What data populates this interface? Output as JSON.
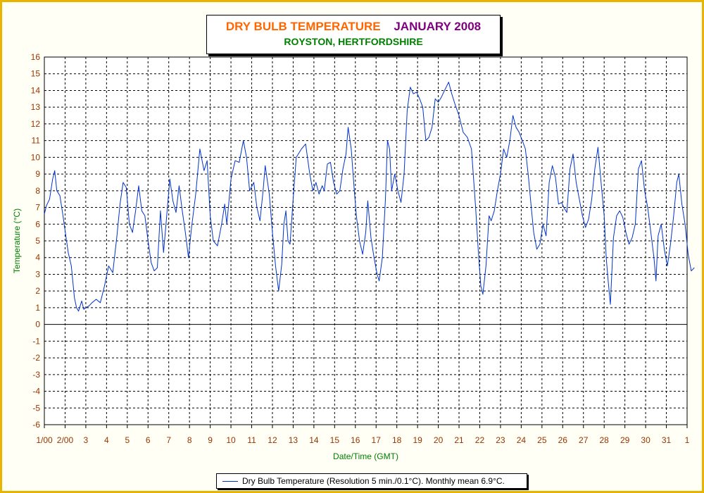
{
  "title": {
    "main": "DRY BULB TEMPERATURE",
    "month": "JANUARY 2008",
    "subtitle": "ROYSTON, HERTFORDSHIRE"
  },
  "legend": {
    "label": "Dry Bulb Temperature (Resolution 5 min./0.1°C). Monthly mean 6.9°C."
  },
  "colors": {
    "frame_background": "#fffff5",
    "frame_border": "#e8b400",
    "tick_label": "#993300",
    "axis_title": "#008000",
    "series_line": "#0033cc"
  },
  "chart_data": {
    "type": "line",
    "title": "DRY BULB TEMPERATURE JANUARY 2008",
    "subtitle": "ROYSTON, HERTFORDSHIRE",
    "xlabel": "Date/Time (GMT)",
    "ylabel": "Temperature (°C)",
    "ylim": [
      -6,
      16
    ],
    "yticks": [
      -6,
      -5,
      -4,
      -3,
      -2,
      -1,
      0,
      1,
      2,
      3,
      4,
      5,
      6,
      7,
      8,
      9,
      10,
      11,
      12,
      13,
      14,
      15,
      16
    ],
    "xlim": [
      1,
      32
    ],
    "xticks": [
      {
        "day": 1,
        "label": "1/00"
      },
      {
        "day": 2,
        "label": "2/00"
      },
      {
        "day": 3,
        "label": "3"
      },
      {
        "day": 4,
        "label": "4"
      },
      {
        "day": 5,
        "label": "5"
      },
      {
        "day": 6,
        "label": "6"
      },
      {
        "day": 7,
        "label": "7"
      },
      {
        "day": 8,
        "label": "8"
      },
      {
        "day": 9,
        "label": "9"
      },
      {
        "day": 10,
        "label": "10"
      },
      {
        "day": 11,
        "label": "11"
      },
      {
        "day": 12,
        "label": "12"
      },
      {
        "day": 13,
        "label": "13"
      },
      {
        "day": 14,
        "label": "14"
      },
      {
        "day": 15,
        "label": "15"
      },
      {
        "day": 16,
        "label": "16"
      },
      {
        "day": 17,
        "label": "17"
      },
      {
        "day": 18,
        "label": "18"
      },
      {
        "day": 19,
        "label": "19"
      },
      {
        "day": 20,
        "label": "20"
      },
      {
        "day": 21,
        "label": "21"
      },
      {
        "day": 22,
        "label": "22"
      },
      {
        "day": 23,
        "label": "23"
      },
      {
        "day": 24,
        "label": "24"
      },
      {
        "day": 25,
        "label": "25"
      },
      {
        "day": 26,
        "label": "26"
      },
      {
        "day": 27,
        "label": "27"
      },
      {
        "day": 28,
        "label": "28"
      },
      {
        "day": 29,
        "label": "29"
      },
      {
        "day": 30,
        "label": "30"
      },
      {
        "day": 31,
        "label": "31"
      },
      {
        "day": 32,
        "label": "1"
      }
    ],
    "grid": true,
    "legend_position": "bottom-center",
    "series": [
      {
        "name": "Dry Bulb Temperature (Resolution 5 min./0.1°C). Monthly mean 6.9°C.",
        "x_unit": "day of month (fractional)",
        "points": [
          [
            1.0,
            6.6
          ],
          [
            1.1,
            7.1
          ],
          [
            1.25,
            7.5
          ],
          [
            1.4,
            8.7
          ],
          [
            1.5,
            9.2
          ],
          [
            1.6,
            8.0
          ],
          [
            1.75,
            7.7
          ],
          [
            1.9,
            6.5
          ],
          [
            2.0,
            5.6
          ],
          [
            2.15,
            4.3
          ],
          [
            2.3,
            3.5
          ],
          [
            2.45,
            1.6
          ],
          [
            2.55,
            1.0
          ],
          [
            2.65,
            0.8
          ],
          [
            2.8,
            1.4
          ],
          [
            2.9,
            0.9
          ],
          [
            3.0,
            1.0
          ],
          [
            3.15,
            1.1
          ],
          [
            3.3,
            1.3
          ],
          [
            3.5,
            1.5
          ],
          [
            3.7,
            1.3
          ],
          [
            3.9,
            2.3
          ],
          [
            4.1,
            3.5
          ],
          [
            4.3,
            3.1
          ],
          [
            4.5,
            5.3
          ],
          [
            4.65,
            7.2
          ],
          [
            4.8,
            8.5
          ],
          [
            4.95,
            8.2
          ],
          [
            5.1,
            6.0
          ],
          [
            5.25,
            5.5
          ],
          [
            5.4,
            6.8
          ],
          [
            5.55,
            8.3
          ],
          [
            5.7,
            6.8
          ],
          [
            5.85,
            6.5
          ],
          [
            6.0,
            5.0
          ],
          [
            6.15,
            3.7
          ],
          [
            6.3,
            3.2
          ],
          [
            6.45,
            3.4
          ],
          [
            6.6,
            6.8
          ],
          [
            6.75,
            4.3
          ],
          [
            6.9,
            6.5
          ],
          [
            7.05,
            8.7
          ],
          [
            7.2,
            7.4
          ],
          [
            7.35,
            6.7
          ],
          [
            7.5,
            8.3
          ],
          [
            7.65,
            6.8
          ],
          [
            7.8,
            5.5
          ],
          [
            7.95,
            4.0
          ],
          [
            8.1,
            5.8
          ],
          [
            8.3,
            7.8
          ],
          [
            8.5,
            10.5
          ],
          [
            8.7,
            9.2
          ],
          [
            8.85,
            9.8
          ],
          [
            9.0,
            6.5
          ],
          [
            9.15,
            5.0
          ],
          [
            9.35,
            4.7
          ],
          [
            9.55,
            6.0
          ],
          [
            9.7,
            7.2
          ],
          [
            9.8,
            6.0
          ],
          [
            10.0,
            8.7
          ],
          [
            10.2,
            9.8
          ],
          [
            10.4,
            9.7
          ],
          [
            10.6,
            11.0
          ],
          [
            10.75,
            10.0
          ],
          [
            10.9,
            8.0
          ],
          [
            11.1,
            8.5
          ],
          [
            11.25,
            7.0
          ],
          [
            11.4,
            6.2
          ],
          [
            11.55,
            8.0
          ],
          [
            11.65,
            9.5
          ],
          [
            11.85,
            7.8
          ],
          [
            12.0,
            5.5
          ],
          [
            12.15,
            3.5
          ],
          [
            12.3,
            2.0
          ],
          [
            12.45,
            3.6
          ],
          [
            12.55,
            6.0
          ],
          [
            12.65,
            6.8
          ],
          [
            12.75,
            5.0
          ],
          [
            12.85,
            4.8
          ],
          [
            13.0,
            7.5
          ],
          [
            13.15,
            10.0
          ],
          [
            13.4,
            10.5
          ],
          [
            13.6,
            10.8
          ],
          [
            13.8,
            9.0
          ],
          [
            13.95,
            8.0
          ],
          [
            14.1,
            8.5
          ],
          [
            14.25,
            7.8
          ],
          [
            14.4,
            8.3
          ],
          [
            14.5,
            8.0
          ],
          [
            14.65,
            9.6
          ],
          [
            14.8,
            9.7
          ],
          [
            14.95,
            8.5
          ],
          [
            15.1,
            7.8
          ],
          [
            15.25,
            8.0
          ],
          [
            15.4,
            9.3
          ],
          [
            15.55,
            10.2
          ],
          [
            15.65,
            11.8
          ],
          [
            15.8,
            10.5
          ],
          [
            15.95,
            8.0
          ],
          [
            16.05,
            6.5
          ],
          [
            16.2,
            5.0
          ],
          [
            16.35,
            4.2
          ],
          [
            16.5,
            5.5
          ],
          [
            16.6,
            7.4
          ],
          [
            16.75,
            5.2
          ],
          [
            16.9,
            4.0
          ],
          [
            17.05,
            3.0
          ],
          [
            17.15,
            2.6
          ],
          [
            17.3,
            4.0
          ],
          [
            17.45,
            7.5
          ],
          [
            17.55,
            11.0
          ],
          [
            17.65,
            10.5
          ],
          [
            17.75,
            8.0
          ],
          [
            17.9,
            9.0
          ],
          [
            18.05,
            8.0
          ],
          [
            18.2,
            7.3
          ],
          [
            18.35,
            9.0
          ],
          [
            18.5,
            12.8
          ],
          [
            18.65,
            14.2
          ],
          [
            18.8,
            13.8
          ],
          [
            18.95,
            13.9
          ],
          [
            19.1,
            13.5
          ],
          [
            19.25,
            13.0
          ],
          [
            19.4,
            11.0
          ],
          [
            19.55,
            11.2
          ],
          [
            19.7,
            11.8
          ],
          [
            19.85,
            13.5
          ],
          [
            20.0,
            13.3
          ],
          [
            20.15,
            13.6
          ],
          [
            20.3,
            14.0
          ],
          [
            20.5,
            14.5
          ],
          [
            20.65,
            13.8
          ],
          [
            20.8,
            13.2
          ],
          [
            21.0,
            12.5
          ],
          [
            21.2,
            11.5
          ],
          [
            21.4,
            11.2
          ],
          [
            21.6,
            10.5
          ],
          [
            21.8,
            7.0
          ],
          [
            21.95,
            4.0
          ],
          [
            22.05,
            2.3
          ],
          [
            22.15,
            1.8
          ],
          [
            22.3,
            3.5
          ],
          [
            22.45,
            6.5
          ],
          [
            22.55,
            6.2
          ],
          [
            22.7,
            6.8
          ],
          [
            22.85,
            8.0
          ],
          [
            23.0,
            9.0
          ],
          [
            23.15,
            10.5
          ],
          [
            23.3,
            10.0
          ],
          [
            23.45,
            11.0
          ],
          [
            23.6,
            12.5
          ],
          [
            23.75,
            11.8
          ],
          [
            23.9,
            11.5
          ],
          [
            24.05,
            11.0
          ],
          [
            24.2,
            10.5
          ],
          [
            24.35,
            8.8
          ],
          [
            24.5,
            6.8
          ],
          [
            24.6,
            5.5
          ],
          [
            24.75,
            4.5
          ],
          [
            24.9,
            4.8
          ],
          [
            25.05,
            6.0
          ],
          [
            25.2,
            5.3
          ],
          [
            25.35,
            8.5
          ],
          [
            25.5,
            9.5
          ],
          [
            25.65,
            8.8
          ],
          [
            25.8,
            7.2
          ],
          [
            25.95,
            7.3
          ],
          [
            26.05,
            7.0
          ],
          [
            26.2,
            6.7
          ],
          [
            26.35,
            9.3
          ],
          [
            26.5,
            10.2
          ],
          [
            26.65,
            8.5
          ],
          [
            26.8,
            7.5
          ],
          [
            26.95,
            6.5
          ],
          [
            27.1,
            5.8
          ],
          [
            27.25,
            6.3
          ],
          [
            27.4,
            7.5
          ],
          [
            27.55,
            9.3
          ],
          [
            27.7,
            10.6
          ],
          [
            27.85,
            8.5
          ],
          [
            28.0,
            6.5
          ],
          [
            28.1,
            4.0
          ],
          [
            28.2,
            2.5
          ],
          [
            28.3,
            1.2
          ],
          [
            28.45,
            5.2
          ],
          [
            28.6,
            6.5
          ],
          [
            28.75,
            6.8
          ],
          [
            28.9,
            6.4
          ],
          [
            29.05,
            5.5
          ],
          [
            29.2,
            4.8
          ],
          [
            29.35,
            5.2
          ],
          [
            29.5,
            6.0
          ],
          [
            29.65,
            9.3
          ],
          [
            29.8,
            9.8
          ],
          [
            29.95,
            8.0
          ],
          [
            30.1,
            7.0
          ],
          [
            30.25,
            5.5
          ],
          [
            30.4,
            4.0
          ],
          [
            30.5,
            2.6
          ],
          [
            30.6,
            5.3
          ],
          [
            30.75,
            6.0
          ],
          [
            30.9,
            4.5
          ],
          [
            31.05,
            3.5
          ],
          [
            31.2,
            4.8
          ],
          [
            31.35,
            6.5
          ],
          [
            31.5,
            8.5
          ],
          [
            31.6,
            9.0
          ],
          [
            31.75,
            7.2
          ],
          [
            31.9,
            6.0
          ],
          [
            32.05,
            4.2
          ],
          [
            32.2,
            3.2
          ],
          [
            32.35,
            3.4
          ]
        ]
      }
    ]
  }
}
